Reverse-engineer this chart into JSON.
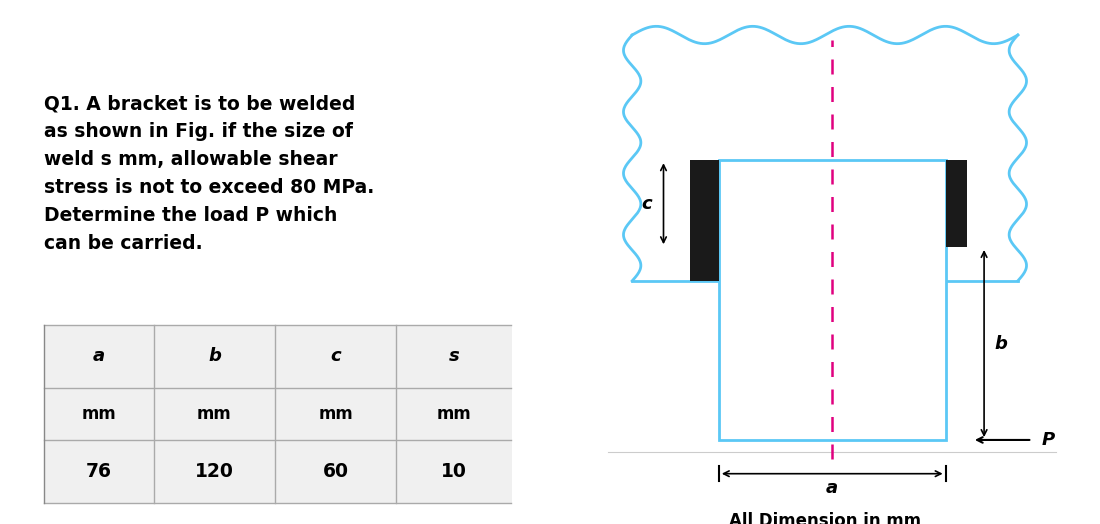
{
  "question_text": [
    "Q1. A bracket is to be welded",
    "as shown in Fig. if the size of",
    "weld s mm, allowable shear",
    "stress is not to exceed 80 MPa.",
    "Determine the load P which",
    "can be carried."
  ],
  "table_headers": [
    "a",
    "b",
    "c",
    "s"
  ],
  "table_units": [
    "mm",
    "mm",
    "mm",
    "mm"
  ],
  "table_values": [
    "76",
    "120",
    "60",
    "10"
  ],
  "bg_color": "#ffffff",
  "text_color": "#000000",
  "diagram_bg": "#ffffff",
  "wavy_border_color": "#5bc8f5",
  "bracket_color": "#000000",
  "weld_color": "#111111",
  "dashed_line_color": "#e0007f",
  "dimension_color": "#000000"
}
